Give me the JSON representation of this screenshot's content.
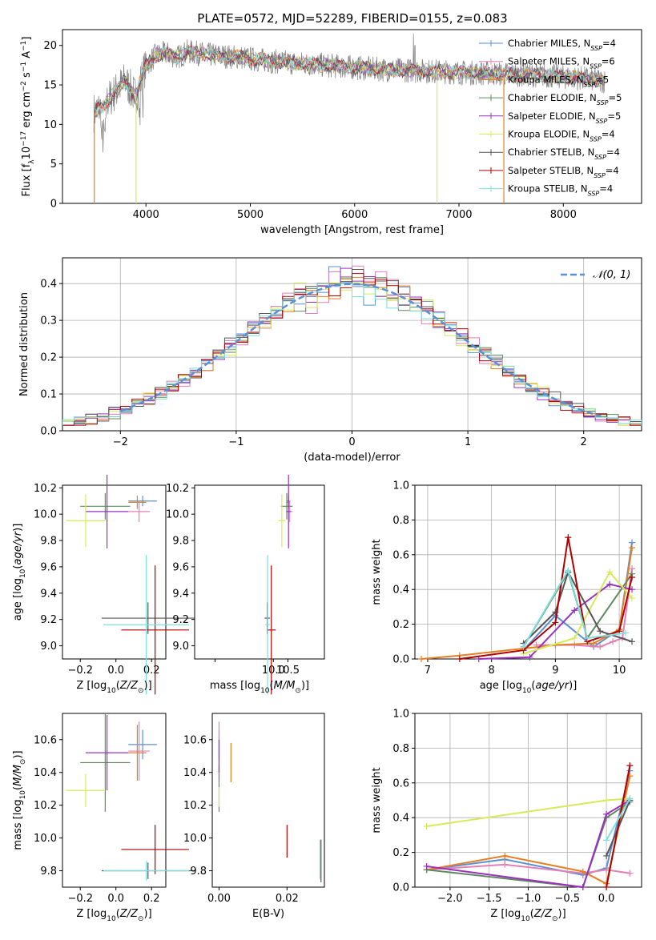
{
  "title": "PLATE=0572, MJD=52289, FIBERID=0155, z=0.083",
  "colors": {
    "Chabrier MILES": "#5b8fd6",
    "Salpeter MILES": "#e67fb4",
    "Kroupa MILES": "#e67e22",
    "Chabrier ELODIE": "#5f8a5f",
    "Salpeter ELODIE": "#9b30c0",
    "Kroupa ELODIE": "#d6ea5a",
    "Chabrier STELIB": "#555555",
    "Salpeter STELIB": "#b00000",
    "Kroupa STELIB": "#7fdede"
  },
  "chart_data": [
    {
      "id": "spectrum",
      "type": "line",
      "xlabel": "wavelength [Angstrom, rest frame]",
      "ylabel": "Flux [f_λ10^-17 erg cm^-2 s^-1 A^-1]",
      "xlim": [
        3200,
        8750
      ],
      "ylim": [
        0,
        22
      ],
      "xticks": [
        4000,
        5000,
        6000,
        7000,
        8000
      ],
      "yticks": [
        0,
        5,
        10,
        15,
        20
      ],
      "legend_position": "upper right",
      "data_curve": {
        "x": [
          3500,
          3600,
          3700,
          3800,
          3900,
          4000,
          4100,
          4200,
          4300,
          4400,
          4500,
          4600,
          4700,
          4800,
          4900,
          5000,
          5200,
          5400,
          5600,
          5800,
          6000,
          6200,
          6400,
          6600,
          6800,
          7000,
          7200,
          7400,
          7600,
          7800,
          8000,
          8200,
          8400
        ],
        "y": [
          11.5,
          12.5,
          14.0,
          15.5,
          13.5,
          17.5,
          18.8,
          19.0,
          18.5,
          19.2,
          19.0,
          18.8,
          18.7,
          18.6,
          18.5,
          18.3,
          18.0,
          17.8,
          17.6,
          17.4,
          17.2,
          17.0,
          16.9,
          16.8,
          16.7,
          16.6,
          16.5,
          16.4,
          16.3,
          16.2,
          16.0,
          15.8,
          15.5
        ]
      },
      "series": [
        {
          "name": "Chabrier MILES, N_SSP=4",
          "label_main": "Chabrier MILES, N",
          "label_sub": "SSP",
          "label_end": "=4"
        },
        {
          "name": "Salpeter MILES, N_SSP=6",
          "label_main": "Salpeter MILES, N",
          "label_sub": "SSP",
          "label_end": "=6"
        },
        {
          "name": "Kroupa MILES, N_SSP=5",
          "label_main": "Kroupa MILES, N",
          "label_sub": "SSP",
          "label_end": "=5"
        },
        {
          "name": "Chabrier ELODIE, N_SSP=5",
          "label_main": "Chabrier ELODIE, N",
          "label_sub": "SSP",
          "label_end": "=5"
        },
        {
          "name": "Salpeter ELODIE, N_SSP=5",
          "label_main": "Salpeter ELODIE, N",
          "label_sub": "SSP",
          "label_end": "=5"
        },
        {
          "name": "Kroupa ELODIE, N_SSP=4",
          "label_main": "Kroupa ELODIE, N",
          "label_sub": "SSP",
          "label_end": "=4"
        },
        {
          "name": "Chabrier STELIB, N_SSP=4",
          "label_main": "Chabrier STELIB, N",
          "label_sub": "SSP",
          "label_end": "=4"
        },
        {
          "name": "Salpeter STELIB, N_SSP=4",
          "label_main": "Salpeter STELIB, N",
          "label_sub": "SSP",
          "label_end": "=4"
        },
        {
          "name": "Kroupa STELIB, N_SSP=4",
          "label_main": "Kroupa STELIB, N",
          "label_sub": "SSP",
          "label_end": "=4"
        }
      ]
    },
    {
      "id": "residuals",
      "type": "histogram",
      "xlabel": "(data-model)/error",
      "ylabel": "Normed distribution",
      "xlim": [
        -2.5,
        2.5
      ],
      "ylim": [
        0,
        0.47
      ],
      "xticks": [
        -2,
        -1,
        0,
        1,
        2
      ],
      "yticks": [
        0.0,
        0.1,
        0.2,
        0.3,
        0.4
      ],
      "grid": true,
      "bin_width": 0.1,
      "reference_curve": {
        "name": "N(0,1)",
        "label": "𝒩(0, 1)",
        "style": "dashed"
      }
    },
    {
      "id": "age-vs-Z",
      "type": "errorbar",
      "xlabel": "Z [log10(Z/Z⊙)]",
      "ylabel": "age [log10(age/yr)]",
      "xlim": [
        -0.3,
        0.28
      ],
      "ylim": [
        8.9,
        10.22
      ],
      "xticks": [
        -0.2,
        0.0,
        0.2
      ],
      "yticks": [
        9.0,
        9.2,
        9.4,
        9.6,
        9.8,
        10.0,
        10.2
      ],
      "points": [
        {
          "series": "Chabrier MILES",
          "x": 0.15,
          "y": 10.1,
          "xerr": 0.08,
          "yerr": 0.04
        },
        {
          "series": "Salpeter MILES",
          "x": 0.13,
          "y": 10.02,
          "xerr": 0.06,
          "yerr": 0.08
        },
        {
          "series": "Kroupa MILES",
          "x": 0.12,
          "y": 10.09,
          "xerr": 0.05,
          "yerr": 0.05
        },
        {
          "series": "Chabrier ELODIE",
          "x": -0.06,
          "y": 10.06,
          "xerr": 0.14,
          "yerr": 0.1
        },
        {
          "series": "Salpeter ELODIE",
          "x": -0.05,
          "y": 10.02,
          "xerr": 0.12,
          "yerr": 0.28
        },
        {
          "series": "Kroupa ELODIE",
          "x": -0.17,
          "y": 9.95,
          "xerr": 0.11,
          "yerr": 0.2
        },
        {
          "series": "Chabrier STELIB",
          "x": 0.18,
          "y": 9.21,
          "xerr": 0.26,
          "yerr": 0.12
        },
        {
          "series": "Salpeter STELIB",
          "x": 0.22,
          "y": 9.12,
          "xerr": 0.19,
          "yerr": 0.49
        },
        {
          "series": "Kroupa STELIB",
          "x": 0.17,
          "y": 9.16,
          "xerr": 0.24,
          "yerr": 0.53
        }
      ]
    },
    {
      "id": "age-vs-mass",
      "type": "errorbar",
      "xlabel": "mass [log10(M/M⊙)]",
      "ylabel": "",
      "xlim": [
        7.3,
        11.75
      ],
      "ylim": [
        8.9,
        10.22
      ],
      "xticks": [
        8,
        10,
        10.5
      ],
      "xtick_labels": [
        "",
        "10.0",
        "10.5"
      ],
      "yticks": [
        9.0,
        9.2,
        9.4,
        9.6,
        9.8,
        10.0,
        10.2
      ],
      "points": [
        {
          "series": "Chabrier MILES",
          "x": 10.52,
          "y": 10.1,
          "xerr": 0.06,
          "yerr": 0.04
        },
        {
          "series": "Salpeter MILES",
          "x": 10.56,
          "y": 10.02,
          "xerr": 0.1,
          "yerr": 0.08
        },
        {
          "series": "Kroupa MILES",
          "x": 10.52,
          "y": 10.09,
          "xerr": 0.05,
          "yerr": 0.05
        },
        {
          "series": "Chabrier ELODIE",
          "x": 10.46,
          "y": 10.06,
          "xerr": 0.2,
          "yerr": 0.1
        },
        {
          "series": "Salpeter ELODIE",
          "x": 10.52,
          "y": 10.02,
          "xerr": 0.08,
          "yerr": 0.28
        },
        {
          "series": "Kroupa ELODIE",
          "x": 10.29,
          "y": 9.95,
          "xerr": 0.12,
          "yerr": 0.2
        },
        {
          "series": "Chabrier STELIB",
          "x": 9.79,
          "y": 9.21,
          "xerr": 0.09,
          "yerr": 0.12
        },
        {
          "series": "Salpeter STELIB",
          "x": 9.93,
          "y": 9.12,
          "xerr": 0.15,
          "yerr": 0.49
        },
        {
          "series": "Kroupa STELIB",
          "x": 9.8,
          "y": 9.16,
          "xerr": 0.08,
          "yerr": 0.53
        }
      ]
    },
    {
      "id": "massweight-vs-age",
      "type": "line",
      "xlabel": "age [log10(age/yr)]",
      "ylabel": "mass weight",
      "xlim": [
        6.8,
        10.35
      ],
      "ylim": [
        0,
        1.0
      ],
      "xticks": [
        7,
        8,
        9,
        10
      ],
      "yticks": [
        0.0,
        0.2,
        0.4,
        0.6,
        0.8,
        1.0
      ],
      "grid": true,
      "series": [
        {
          "series": "Chabrier MILES",
          "x": [
            8.5,
            9.0,
            9.6,
            10.0,
            10.2
          ],
          "y": [
            0.05,
            0.25,
            0.07,
            0.17,
            0.67
          ]
        },
        {
          "series": "Salpeter MILES",
          "x": [
            8.7,
            9.3,
            9.7,
            9.9,
            10.05,
            10.2
          ],
          "y": [
            0.08,
            0.08,
            0.07,
            0.1,
            0.12,
            0.52
          ]
        },
        {
          "series": "Kroupa MILES",
          "x": [
            6.9,
            7.5,
            9.0,
            9.6,
            10.0,
            10.2
          ],
          "y": [
            0.0,
            0.02,
            0.08,
            0.09,
            0.17,
            0.64
          ]
        },
        {
          "series": "Chabrier ELODIE",
          "x": [
            8.5,
            9.2,
            9.5,
            10.2
          ],
          "y": [
            0.07,
            0.5,
            0.12,
            0.49
          ]
        },
        {
          "series": "Salpeter ELODIE",
          "x": [
            7.8,
            8.6,
            9.3,
            9.85,
            10.2
          ],
          "y": [
            0.0,
            0.01,
            0.28,
            0.43,
            0.4
          ]
        },
        {
          "series": "Kroupa ELODIE",
          "x": [
            8.5,
            9.3,
            9.85,
            10.2
          ],
          "y": [
            0.03,
            0.12,
            0.5,
            0.35
          ]
        },
        {
          "series": "Chabrier STELIB",
          "x": [
            8.5,
            9.0,
            9.2,
            9.7,
            10.2
          ],
          "y": [
            0.09,
            0.27,
            0.5,
            0.16,
            0.1
          ]
        },
        {
          "series": "Salpeter STELIB",
          "x": [
            7.5,
            8.5,
            9.0,
            9.2,
            9.5,
            10.0,
            10.2
          ],
          "y": [
            0.0,
            0.05,
            0.21,
            0.7,
            0.1,
            0.16,
            0.47
          ]
        },
        {
          "series": "Kroupa STELIB",
          "x": [
            8.5,
            9.2,
            9.5,
            10.1
          ],
          "y": [
            0.07,
            0.51,
            0.12,
            0.15
          ]
        }
      ]
    },
    {
      "id": "mass-vs-Z",
      "type": "errorbar",
      "xlabel": "Z [log10(Z/Z⊙)]",
      "ylabel": "mass [log10(M/M⊙)]",
      "xlim": [
        -0.3,
        0.28
      ],
      "ylim": [
        9.7,
        10.76
      ],
      "xticks": [
        -0.2,
        0.0,
        0.2
      ],
      "yticks": [
        9.8,
        10.0,
        10.2,
        10.4,
        10.6
      ],
      "points": [
        {
          "series": "Chabrier MILES",
          "x": 0.15,
          "y": 10.57,
          "xerr": 0.08,
          "yerr": 0.09
        },
        {
          "series": "Salpeter MILES",
          "x": 0.13,
          "y": 10.53,
          "xerr": 0.06,
          "yerr": 0.18
        },
        {
          "series": "Kroupa MILES",
          "x": 0.12,
          "y": 10.52,
          "xerr": 0.05,
          "yerr": 0.17
        },
        {
          "series": "Chabrier ELODIE",
          "x": -0.06,
          "y": 10.46,
          "xerr": 0.14,
          "yerr": 0.3
        },
        {
          "series": "Salpeter ELODIE",
          "x": -0.05,
          "y": 10.52,
          "xerr": 0.12,
          "yerr": 0.23
        },
        {
          "series": "Kroupa ELODIE",
          "x": -0.17,
          "y": 10.29,
          "xerr": 0.11,
          "yerr": 0.1
        },
        {
          "series": "Chabrier STELIB",
          "x": 0.18,
          "y": 9.8,
          "xerr": 0.26,
          "yerr": 0.05
        },
        {
          "series": "Salpeter STELIB",
          "x": 0.22,
          "y": 9.93,
          "xerr": 0.19,
          "yerr": 0.15
        },
        {
          "series": "Kroupa STELIB",
          "x": 0.17,
          "y": 9.8,
          "xerr": 0.24,
          "yerr": 0.06
        }
      ]
    },
    {
      "id": "mass-vs-EBV",
      "type": "errorbar",
      "xlabel": "E(B-V)",
      "ylabel": "",
      "xlim": [
        -0.002,
        0.031
      ],
      "ylim": [
        9.7,
        10.76
      ],
      "xticks": [
        0.0,
        0.02
      ],
      "xtick_labels": [
        "0.00",
        "0.02"
      ],
      "yticks": [
        9.8,
        10.0,
        10.2,
        10.4,
        10.6
      ],
      "points": [
        {
          "series": "Chabrier MILES",
          "x": 0.0,
          "y": 10.57,
          "xerr": 0,
          "yerr": 0.09
        },
        {
          "series": "Salpeter MILES",
          "x": 0.0,
          "y": 10.53,
          "xerr": 0,
          "yerr": 0.18
        },
        {
          "series": "Kroupa MILES",
          "x": 0.0035,
          "y": 10.46,
          "xerr": 0,
          "yerr": 0.12
        },
        {
          "series": "Chabrier ELODIE",
          "x": 0.0,
          "y": 10.3,
          "xerr": 0,
          "yerr": 0.14
        },
        {
          "series": "Salpeter ELODIE",
          "x": 0.0,
          "y": 10.5,
          "xerr": 0,
          "yerr": 0.1
        },
        {
          "series": "Kroupa ELODIE",
          "x": 0.0,
          "y": 10.25,
          "xerr": 0,
          "yerr": 0.06
        },
        {
          "series": "Chabrier STELIB",
          "x": 0.03,
          "y": 9.86,
          "xerr": 0,
          "yerr": 0.13
        },
        {
          "series": "Salpeter STELIB",
          "x": 0.02,
          "y": 9.98,
          "xerr": 0,
          "yerr": 0.1
        },
        {
          "series": "Kroupa STELIB",
          "x": 0.0297,
          "y": 9.87,
          "xerr": 0,
          "yerr": 0.12
        }
      ]
    },
    {
      "id": "massweight-vs-Z",
      "type": "line",
      "xlabel": "Z [log10(Z/Z⊙)]",
      "ylabel": "mass weight",
      "xlim": [
        -2.45,
        0.45
      ],
      "ylim": [
        0,
        1.0
      ],
      "xticks": [
        -2.0,
        -1.5,
        -1.0,
        -0.5,
        0.0
      ],
      "yticks": [
        0.0,
        0.2,
        0.4,
        0.6,
        0.8,
        1.0
      ],
      "grid": true,
      "series": [
        {
          "series": "Chabrier MILES",
          "x": [
            -2.3,
            -1.3,
            -0.3,
            0.0,
            0.3
          ],
          "y": [
            0.1,
            0.16,
            0.07,
            0.11,
            0.67
          ]
        },
        {
          "series": "Salpeter MILES",
          "x": [
            -2.3,
            -1.3,
            -0.3,
            0.0,
            0.3
          ],
          "y": [
            0.1,
            0.13,
            0.08,
            0.1,
            0.08
          ]
        },
        {
          "series": "Kroupa MILES",
          "x": [
            -2.3,
            -1.3,
            -0.3,
            0.0,
            0.3
          ],
          "y": [
            0.1,
            0.18,
            0.09,
            0.02,
            0.64
          ]
        },
        {
          "series": "Chabrier ELODIE",
          "x": [
            -2.3,
            -0.3,
            0.0,
            0.3
          ],
          "y": [
            0.1,
            0.0,
            0.4,
            0.49
          ]
        },
        {
          "series": "Salpeter ELODIE",
          "x": [
            -2.3,
            -0.3,
            0.0,
            0.3
          ],
          "y": [
            0.12,
            0.0,
            0.42,
            0.5
          ]
        },
        {
          "series": "Kroupa ELODIE",
          "x": [
            -2.3,
            0.0,
            0.3
          ],
          "y": [
            0.35,
            0.5,
            0.51
          ]
        },
        {
          "series": "Chabrier STELIB",
          "x": [
            0.0,
            0.3
          ],
          "y": [
            0.18,
            0.5
          ]
        },
        {
          "series": "Salpeter STELIB",
          "x": [
            0.0,
            0.3
          ],
          "y": [
            0.0,
            0.7
          ]
        },
        {
          "series": "Kroupa STELIB",
          "x": [
            0.0,
            0.3
          ],
          "y": [
            0.27,
            0.51
          ]
        }
      ]
    }
  ]
}
